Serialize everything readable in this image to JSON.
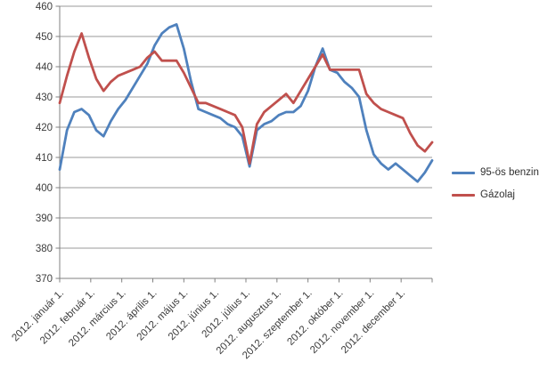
{
  "chart": {
    "background": "#ffffff",
    "grid_color": "#9a9a9a",
    "axis_color": "#808080",
    "text_color": "#3c3c3c"
  },
  "chart_data": {
    "type": "line",
    "title": "",
    "xlabel": "",
    "ylabel": "",
    "x_unit": "weekly price points, year 2012",
    "ylim": [
      370,
      460
    ],
    "y_ticks": [
      370,
      380,
      390,
      400,
      410,
      420,
      430,
      440,
      450,
      460
    ],
    "grid": true,
    "legend_position": "right",
    "categories": [
      "2012. január 1.",
      "2012. február 1.",
      "2012. március 1.",
      "2012. április 1.",
      "2012. május 1.",
      "2012. június 1.",
      "2012. július 1.",
      "2012. augusztus 1.",
      "2012. szeptember 1.",
      "2012. október 1.",
      "2012. november 1.",
      "2012. december 1."
    ],
    "series": [
      {
        "name": "95-ös benzin",
        "color": "#4F81BD",
        "values": [
          406,
          419,
          425,
          426,
          424,
          419,
          417,
          422,
          426,
          429,
          433,
          437,
          441,
          447,
          451,
          453,
          454,
          446,
          435,
          426,
          425,
          424,
          423,
          421,
          420,
          417,
          407,
          419,
          421,
          422,
          424,
          425,
          425,
          427,
          432,
          440,
          446,
          439,
          438,
          435,
          433,
          430,
          419,
          411,
          408,
          406,
          408,
          406,
          404,
          402,
          405,
          409
        ]
      },
      {
        "name": "Gázolaj",
        "color": "#C0504D",
        "values": [
          428,
          437,
          445,
          451,
          443,
          436,
          432,
          435,
          437,
          438,
          439,
          440,
          443,
          445,
          442,
          442,
          442,
          438,
          433,
          428,
          428,
          427,
          426,
          425,
          424,
          420,
          408,
          421,
          425,
          427,
          429,
          431,
          428,
          432,
          436,
          440,
          444,
          439,
          439,
          439,
          439,
          439,
          431,
          428,
          426,
          425,
          424,
          423,
          418,
          414,
          412,
          415
        ]
      }
    ]
  }
}
